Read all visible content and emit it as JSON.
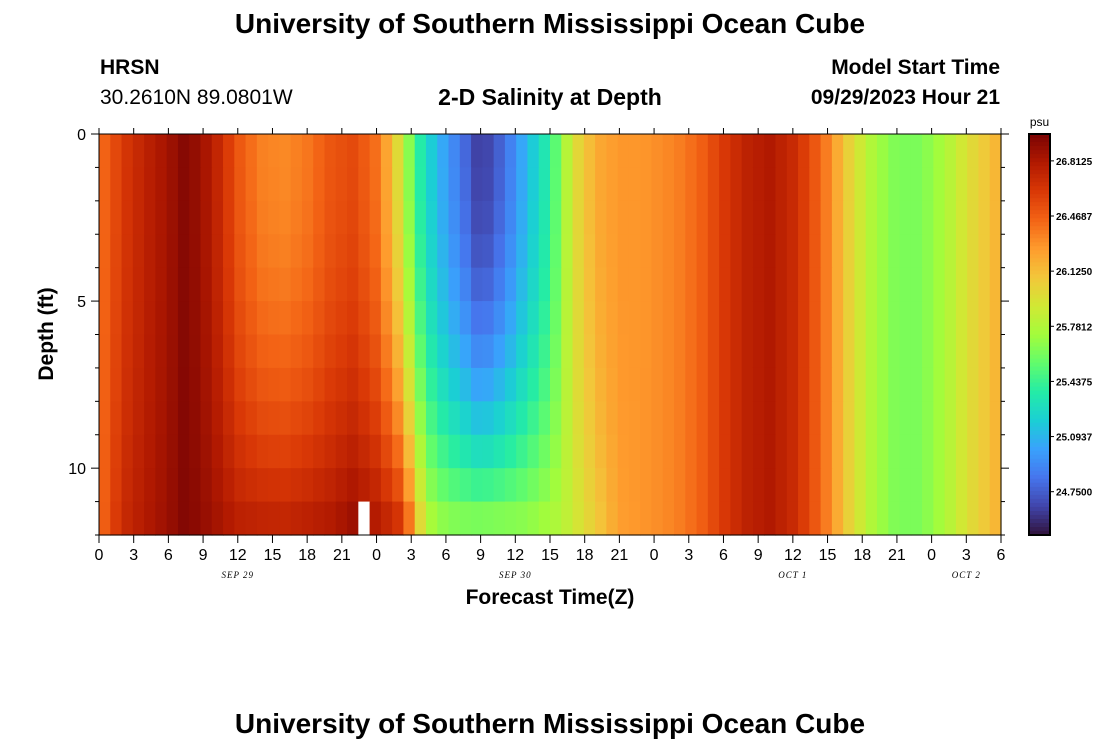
{
  "page": {
    "title": "University of Southern Mississippi Ocean Cube",
    "footer_title": "University of Southern Mississippi Ocean Cube",
    "station": "HRSN",
    "coords": "30.2610N  89.0801W",
    "plot_title": "2-D Salinity at Depth",
    "model_start_label": "Model Start Time",
    "model_start_value": "09/29/2023 Hour 21"
  },
  "chart_data": {
    "type": "heatmap",
    "title": "2-D Salinity at Depth",
    "xlabel": "Forecast Time(Z)",
    "ylabel": "Depth (ft)",
    "x_tick_labels": [
      "0",
      "3",
      "6",
      "9",
      "12",
      "15",
      "18",
      "21",
      "0",
      "3",
      "6",
      "9",
      "12",
      "15",
      "18",
      "21",
      "0",
      "3",
      "6",
      "9",
      "12",
      "15",
      "18",
      "21",
      "0",
      "3",
      "6"
    ],
    "date_labels": [
      {
        "text": "SEP 29",
        "at_tick": 4
      },
      {
        "text": "SEP 30",
        "at_tick": 12
      },
      {
        "text": "OCT 1",
        "at_tick": 20
      },
      {
        "text": "OCT 2",
        "at_tick": 25
      }
    ],
    "x_range_hours": [
      0,
      78
    ],
    "y_ticks": [
      0,
      5,
      10
    ],
    "y_range_ft": [
      0,
      12
    ],
    "colorbar": {
      "unit": "psu",
      "labels": [
        "26.8125",
        "26.4687",
        "26.1250",
        "25.7812",
        "25.4375",
        "25.0937",
        "24.7500"
      ],
      "min": 24.48,
      "max": 26.98
    },
    "colors": [
      "#30123b",
      "#4145ab",
      "#4675ed",
      "#39a2fc",
      "#1bcfd4",
      "#24eca6",
      "#61fc6c",
      "#a4fc3b",
      "#d1e834",
      "#f3c63a",
      "#fe9b2d",
      "#f36315",
      "#d93806",
      "#b11901",
      "#7a0403"
    ],
    "surface_salinity_profile": [
      {
        "h": 0,
        "s": 26.4
      },
      {
        "h": 1,
        "s": 26.5
      },
      {
        "h": 2,
        "s": 26.62
      },
      {
        "h": 4,
        "s": 26.75
      },
      {
        "h": 6,
        "s": 26.85
      },
      {
        "h": 7.5,
        "s": 26.95
      },
      {
        "h": 9,
        "s": 26.85
      },
      {
        "h": 10.5,
        "s": 26.7
      },
      {
        "h": 12,
        "s": 26.5
      },
      {
        "h": 14,
        "s": 26.35
      },
      {
        "h": 16,
        "s": 26.32
      },
      {
        "h": 18,
        "s": 26.38
      },
      {
        "h": 20,
        "s": 26.5
      },
      {
        "h": 22,
        "s": 26.55
      },
      {
        "h": 24,
        "s": 26.4
      },
      {
        "h": 25.5,
        "s": 26.1
      },
      {
        "h": 26.5,
        "s": 25.75
      },
      {
        "h": 28,
        "s": 25.3
      },
      {
        "h": 30,
        "s": 25.0
      },
      {
        "h": 32,
        "s": 24.75
      },
      {
        "h": 33,
        "s": 24.6
      },
      {
        "h": 35,
        "s": 24.8
      },
      {
        "h": 37,
        "s": 25.1
      },
      {
        "h": 39,
        "s": 25.4
      },
      {
        "h": 41,
        "s": 25.95
      },
      {
        "h": 43,
        "s": 26.2
      },
      {
        "h": 45,
        "s": 26.28
      },
      {
        "h": 47,
        "s": 26.28
      },
      {
        "h": 48,
        "s": 26.3
      },
      {
        "h": 50,
        "s": 26.35
      },
      {
        "h": 52,
        "s": 26.45
      },
      {
        "h": 54,
        "s": 26.62
      },
      {
        "h": 56,
        "s": 26.75
      },
      {
        "h": 58,
        "s": 26.8
      },
      {
        "h": 60,
        "s": 26.7
      },
      {
        "h": 61.5,
        "s": 26.55
      },
      {
        "h": 63,
        "s": 26.35
      },
      {
        "h": 65,
        "s": 26.0
      },
      {
        "h": 67,
        "s": 25.75
      },
      {
        "h": 69,
        "s": 25.62
      },
      {
        "h": 71,
        "s": 25.62
      },
      {
        "h": 73,
        "s": 25.75
      },
      {
        "h": 75,
        "s": 25.95
      },
      {
        "h": 77,
        "s": 26.1
      },
      {
        "h": 78,
        "s": 26.2
      }
    ],
    "bottom_salinity_profile": [
      {
        "h": 0,
        "s": 26.4
      },
      {
        "h": 1,
        "s": 26.55
      },
      {
        "h": 2,
        "s": 26.7
      },
      {
        "h": 4,
        "s": 26.8
      },
      {
        "h": 6,
        "s": 26.88
      },
      {
        "h": 7.5,
        "s": 26.96
      },
      {
        "h": 9,
        "s": 26.9
      },
      {
        "h": 12,
        "s": 26.78
      },
      {
        "h": 16,
        "s": 26.76
      },
      {
        "h": 20,
        "s": 26.82
      },
      {
        "h": 22,
        "s": 26.9
      },
      {
        "h": 24,
        "s": 26.82
      },
      {
        "h": 26,
        "s": 26.7
      },
      {
        "h": 27,
        "s": 26.4
      },
      {
        "h": 28,
        "s": 25.95
      },
      {
        "h": 29,
        "s": 25.75
      },
      {
        "h": 31,
        "s": 25.7
      },
      {
        "h": 34,
        "s": 25.72
      },
      {
        "h": 37,
        "s": 25.72
      },
      {
        "h": 40,
        "s": 25.8
      },
      {
        "h": 43,
        "s": 26.05
      },
      {
        "h": 45,
        "s": 26.25
      },
      {
        "h": 48,
        "s": 26.3
      },
      {
        "h": 50,
        "s": 26.35
      },
      {
        "h": 52,
        "s": 26.45
      },
      {
        "h": 54,
        "s": 26.62
      },
      {
        "h": 56,
        "s": 26.75
      },
      {
        "h": 58,
        "s": 26.8
      },
      {
        "h": 60,
        "s": 26.7
      },
      {
        "h": 61.5,
        "s": 26.55
      },
      {
        "h": 63,
        "s": 26.35
      },
      {
        "h": 65,
        "s": 26.0
      },
      {
        "h": 67,
        "s": 25.75
      },
      {
        "h": 69,
        "s": 25.62
      },
      {
        "h": 71,
        "s": 25.62
      },
      {
        "h": 73,
        "s": 25.75
      },
      {
        "h": 75,
        "s": 25.95
      },
      {
        "h": 77,
        "s": 26.1
      },
      {
        "h": 78,
        "s": 26.2
      }
    ],
    "missing_cell": {
      "hour": 22.5,
      "depth_ft": 11.5
    }
  }
}
